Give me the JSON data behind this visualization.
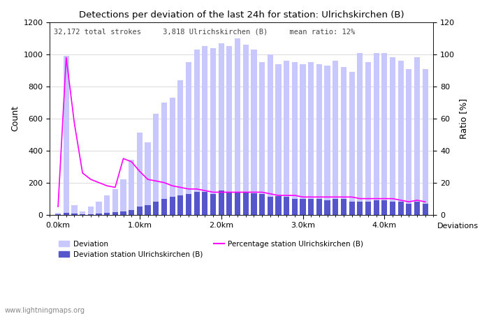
{
  "title": "Detections per deviation of the last 24h for station: Ulrichskirchen (B)",
  "subtitle": "32,172 total strokes     3,818 Ulrichskirchen (B)     mean ratio: 12%",
  "ylabel_left": "Count",
  "ylabel_right": "Ratio [%]",
  "watermark": "www.lightningmaps.org",
  "ylim_left": [
    0,
    1200
  ],
  "ylim_right": [
    0,
    120
  ],
  "yticks_left": [
    0,
    200,
    400,
    600,
    800,
    1000,
    1200
  ],
  "yticks_right": [
    0,
    20,
    40,
    60,
    80,
    100,
    120
  ],
  "xtick_labels": [
    "0.0km",
    "1.0km",
    "2.0km",
    "3.0km",
    "4.0km"
  ],
  "xtick_positions": [
    0,
    10,
    20,
    30,
    40
  ],
  "num_bars": 46,
  "bar_width": 0.7,
  "deviation_color": "#c8c8ff",
  "station_color": "#5555cc",
  "line_color": "#ff00ff",
  "bg_color": "#ffffff",
  "grid_color": "#cccccc",
  "deviation_values": [
    10,
    990,
    60,
    20,
    50,
    80,
    120,
    160,
    220,
    340,
    510,
    450,
    630,
    700,
    730,
    840,
    950,
    1030,
    1050,
    1040,
    1070,
    1050,
    1100,
    1060,
    1030,
    950,
    1000,
    940,
    960,
    950,
    940,
    950,
    940,
    930,
    960,
    920,
    890,
    1010,
    950,
    1010,
    1010,
    980,
    960,
    910,
    980,
    910
  ],
  "station_values": [
    1,
    10,
    5,
    2,
    4,
    6,
    10,
    15,
    20,
    30,
    50,
    60,
    80,
    100,
    110,
    120,
    130,
    140,
    140,
    130,
    150,
    140,
    140,
    140,
    135,
    130,
    110,
    115,
    110,
    100,
    100,
    100,
    100,
    90,
    100,
    100,
    80,
    80,
    80,
    90,
    90,
    80,
    80,
    70,
    80,
    70
  ],
  "ratio_values": [
    5,
    98,
    57,
    26,
    22,
    20,
    18,
    17,
    35,
    33,
    27,
    22,
    21,
    20,
    18,
    17,
    16,
    16,
    15,
    14,
    14,
    14,
    14,
    14,
    14,
    14,
    13,
    12,
    12,
    12,
    11,
    11,
    11,
    11,
    11,
    11,
    11,
    10,
    10,
    10,
    10,
    10,
    9,
    8,
    9,
    8
  ]
}
